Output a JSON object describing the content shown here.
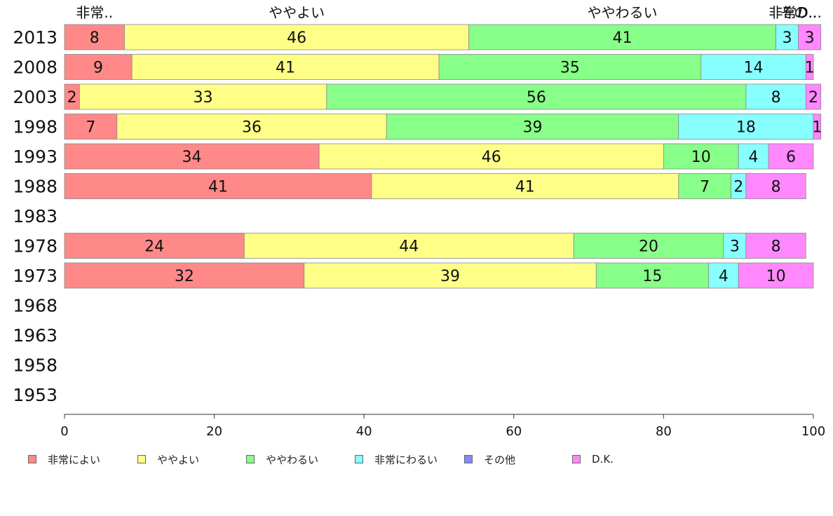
{
  "chart_data": {
    "type": "bar",
    "orientation": "horizontal",
    "stacked": true,
    "categories": [
      "2013",
      "2008",
      "2003",
      "1998",
      "1993",
      "1988",
      "1983",
      "1978",
      "1973",
      "1968",
      "1963",
      "1958",
      "1953"
    ],
    "series": [
      {
        "name": "非常によい",
        "color": "#ff8888",
        "values": [
          8,
          9,
          2,
          7,
          34,
          41,
          null,
          24,
          32,
          null,
          null,
          null,
          null
        ]
      },
      {
        "name": "ややよい",
        "color": "#ffff88",
        "values": [
          46,
          41,
          33,
          36,
          46,
          41,
          null,
          44,
          39,
          null,
          null,
          null,
          null
        ]
      },
      {
        "name": "ややわるい",
        "color": "#88ff88",
        "values": [
          41,
          35,
          56,
          39,
          10,
          7,
          null,
          20,
          15,
          null,
          null,
          null,
          null
        ]
      },
      {
        "name": "非常にわるい",
        "color": "#88ffff",
        "values": [
          3,
          14,
          8,
          18,
          4,
          2,
          null,
          3,
          4,
          null,
          null,
          null,
          null
        ]
      },
      {
        "name": "その他",
        "color": "#8888ff",
        "values": [
          0,
          0,
          0,
          0,
          0,
          0,
          null,
          0,
          0,
          null,
          null,
          null,
          null
        ]
      },
      {
        "name": "D.K.",
        "color": "#ff88ff",
        "values": [
          3,
          1,
          2,
          1,
          6,
          8,
          null,
          8,
          10,
          null,
          null,
          null,
          null
        ]
      }
    ],
    "top_labels": [
      "非常..",
      "ややよい",
      "ややわるい",
      "非常..",
      "その..",
      "D..."
    ],
    "xlim": [
      0,
      100
    ],
    "xticks": [
      0,
      20,
      40,
      60,
      80,
      100
    ],
    "grid": false,
    "legend_position": "bottom"
  }
}
